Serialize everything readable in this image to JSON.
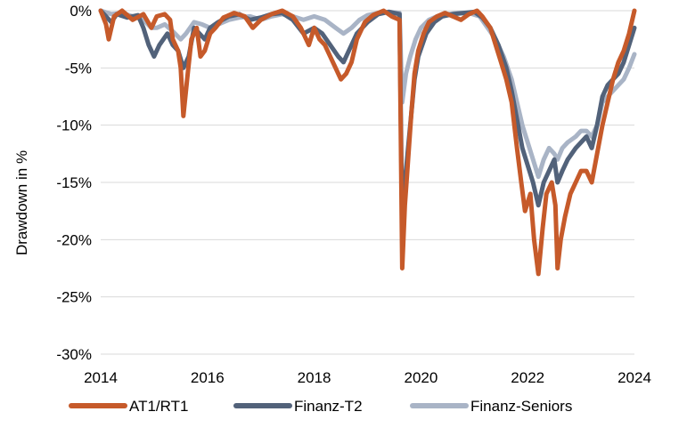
{
  "chart_data": {
    "type": "line",
    "title": "",
    "xlabel": "",
    "ylabel": "Drawdown in %",
    "xlim": [
      2014,
      2024
    ],
    "ylim": [
      -30,
      0
    ],
    "x_ticks": [
      2014,
      2016,
      2018,
      2020,
      2022,
      2024
    ],
    "x_tick_labels": [
      "2014",
      "2016",
      "2018",
      "2020",
      "2022",
      "2024"
    ],
    "y_ticks": [
      0,
      -5,
      -10,
      -15,
      -20,
      -25,
      -30
    ],
    "y_tick_labels": [
      "0%",
      "-5%",
      "-10%",
      "-15%",
      "-20%",
      "-25%",
      "-30%"
    ],
    "grid": "horizontal",
    "legend_position": "bottom",
    "series": [
      {
        "name": "AT1/RT1",
        "color": "#C65A2A",
        "points": [
          [
            2014.0,
            0
          ],
          [
            2014.1,
            -1.2
          ],
          [
            2014.15,
            -2.5
          ],
          [
            2014.25,
            -0.5
          ],
          [
            2014.4,
            0
          ],
          [
            2014.6,
            -0.8
          ],
          [
            2014.8,
            -0.3
          ],
          [
            2014.95,
            -1.5
          ],
          [
            2015.05,
            -0.5
          ],
          [
            2015.2,
            -0.3
          ],
          [
            2015.3,
            -0.8
          ],
          [
            2015.35,
            -2.5
          ],
          [
            2015.45,
            -3.5
          ],
          [
            2015.5,
            -5
          ],
          [
            2015.55,
            -9.2
          ],
          [
            2015.62,
            -6
          ],
          [
            2015.7,
            -2.5
          ],
          [
            2015.8,
            -1.5
          ],
          [
            2015.87,
            -4
          ],
          [
            2015.95,
            -3.5
          ],
          [
            2016.05,
            -2
          ],
          [
            2016.15,
            -1.5
          ],
          [
            2016.3,
            -0.6
          ],
          [
            2016.5,
            -0.2
          ],
          [
            2016.7,
            -0.5
          ],
          [
            2016.85,
            -1.5
          ],
          [
            2017.0,
            -0.8
          ],
          [
            2017.2,
            -0.3
          ],
          [
            2017.4,
            0
          ],
          [
            2017.6,
            -0.5
          ],
          [
            2017.75,
            -1.5
          ],
          [
            2017.9,
            -3
          ],
          [
            2018.0,
            -1.5
          ],
          [
            2018.1,
            -2.5
          ],
          [
            2018.2,
            -3
          ],
          [
            2018.3,
            -4
          ],
          [
            2018.4,
            -5
          ],
          [
            2018.5,
            -6
          ],
          [
            2018.6,
            -5.5
          ],
          [
            2018.7,
            -4.5
          ],
          [
            2018.8,
            -2.5
          ],
          [
            2018.95,
            -1
          ],
          [
            2019.1,
            -0.4
          ],
          [
            2019.3,
            0
          ],
          [
            2019.45,
            -0.5
          ],
          [
            2019.6,
            -0.8
          ],
          [
            2019.65,
            -22.5
          ],
          [
            2019.7,
            -17
          ],
          [
            2019.76,
            -13
          ],
          [
            2019.82,
            -9
          ],
          [
            2019.88,
            -5.5
          ],
          [
            2019.95,
            -3.5
          ],
          [
            2020.05,
            -2
          ],
          [
            2020.15,
            -1
          ],
          [
            2020.3,
            -0.5
          ],
          [
            2020.45,
            -0.2
          ],
          [
            2020.6,
            -0.5
          ],
          [
            2020.75,
            -0.8
          ],
          [
            2020.9,
            -0.3
          ],
          [
            2021.05,
            0
          ],
          [
            2021.15,
            -0.5
          ],
          [
            2021.3,
            -1.5
          ],
          [
            2021.4,
            -3
          ],
          [
            2021.5,
            -4.5
          ],
          [
            2021.6,
            -6
          ],
          [
            2021.7,
            -8
          ],
          [
            2021.8,
            -12
          ],
          [
            2021.88,
            -15
          ],
          [
            2021.95,
            -17.5
          ],
          [
            2022.05,
            -16
          ],
          [
            2022.12,
            -20
          ],
          [
            2022.2,
            -23
          ],
          [
            2022.28,
            -19
          ],
          [
            2022.35,
            -16
          ],
          [
            2022.45,
            -15
          ],
          [
            2022.52,
            -17
          ],
          [
            2022.56,
            -22.5
          ],
          [
            2022.62,
            -20
          ],
          [
            2022.7,
            -18
          ],
          [
            2022.8,
            -16
          ],
          [
            2022.9,
            -15
          ],
          [
            2023.0,
            -14
          ],
          [
            2023.1,
            -14
          ],
          [
            2023.2,
            -15
          ],
          [
            2023.3,
            -12.5
          ],
          [
            2023.4,
            -10
          ],
          [
            2023.5,
            -8
          ],
          [
            2023.6,
            -6
          ],
          [
            2023.7,
            -4.5
          ],
          [
            2023.8,
            -3.5
          ],
          [
            2023.9,
            -2
          ],
          [
            2024.0,
            0
          ]
        ]
      },
      {
        "name": "Finanz-T2",
        "color": "#52627A",
        "points": [
          [
            2014.0,
            0
          ],
          [
            2014.1,
            -0.5
          ],
          [
            2014.2,
            -1
          ],
          [
            2014.3,
            -0.3
          ],
          [
            2014.5,
            -0.6
          ],
          [
            2014.7,
            -0.4
          ],
          [
            2014.8,
            -1.5
          ],
          [
            2014.9,
            -3
          ],
          [
            2015.0,
            -4
          ],
          [
            2015.1,
            -3
          ],
          [
            2015.25,
            -2
          ],
          [
            2015.35,
            -3
          ],
          [
            2015.45,
            -3.5
          ],
          [
            2015.55,
            -5
          ],
          [
            2015.65,
            -4
          ],
          [
            2015.75,
            -1.5
          ],
          [
            2015.85,
            -2
          ],
          [
            2015.95,
            -2.5
          ],
          [
            2016.05,
            -1.5
          ],
          [
            2016.2,
            -1
          ],
          [
            2016.4,
            -0.5
          ],
          [
            2016.6,
            -0.3
          ],
          [
            2016.8,
            -0.8
          ],
          [
            2017.0,
            -0.6
          ],
          [
            2017.2,
            -0.3
          ],
          [
            2017.4,
            -0.2
          ],
          [
            2017.6,
            -0.8
          ],
          [
            2017.8,
            -2
          ],
          [
            2018.0,
            -1.5
          ],
          [
            2018.15,
            -2
          ],
          [
            2018.3,
            -3
          ],
          [
            2018.45,
            -4
          ],
          [
            2018.55,
            -4.5
          ],
          [
            2018.65,
            -3.5
          ],
          [
            2018.8,
            -2
          ],
          [
            2019.0,
            -1
          ],
          [
            2019.2,
            -0.3
          ],
          [
            2019.4,
            -0.1
          ],
          [
            2019.6,
            -0.3
          ],
          [
            2019.65,
            -19
          ],
          [
            2019.72,
            -14
          ],
          [
            2019.8,
            -10
          ],
          [
            2019.88,
            -6
          ],
          [
            2019.95,
            -4
          ],
          [
            2020.1,
            -2
          ],
          [
            2020.25,
            -1
          ],
          [
            2020.4,
            -0.5
          ],
          [
            2020.6,
            -0.3
          ],
          [
            2020.8,
            -0.2
          ],
          [
            2021.0,
            -0.1
          ],
          [
            2021.15,
            -0.6
          ],
          [
            2021.3,
            -1.5
          ],
          [
            2021.45,
            -3
          ],
          [
            2021.6,
            -5
          ],
          [
            2021.7,
            -7
          ],
          [
            2021.8,
            -9.5
          ],
          [
            2021.9,
            -12
          ],
          [
            2022.0,
            -13.5
          ],
          [
            2022.1,
            -15
          ],
          [
            2022.2,
            -17
          ],
          [
            2022.3,
            -15
          ],
          [
            2022.4,
            -14
          ],
          [
            2022.5,
            -13
          ],
          [
            2022.56,
            -15
          ],
          [
            2022.65,
            -14
          ],
          [
            2022.75,
            -13
          ],
          [
            2022.9,
            -12
          ],
          [
            2023.0,
            -11.5
          ],
          [
            2023.1,
            -11
          ],
          [
            2023.2,
            -12
          ],
          [
            2023.3,
            -10
          ],
          [
            2023.4,
            -7.5
          ],
          [
            2023.5,
            -6.5
          ],
          [
            2023.6,
            -6
          ],
          [
            2023.7,
            -5.5
          ],
          [
            2023.8,
            -4.5
          ],
          [
            2023.9,
            -3
          ],
          [
            2024.0,
            -1.5
          ]
        ]
      },
      {
        "name": "Finanz-Seniors",
        "color": "#A9B4C6",
        "points": [
          [
            2014.0,
            0
          ],
          [
            2014.2,
            -0.3
          ],
          [
            2014.4,
            -0.2
          ],
          [
            2014.6,
            -0.5
          ],
          [
            2014.8,
            -0.8
          ],
          [
            2014.95,
            -1.5
          ],
          [
            2015.05,
            -1.5
          ],
          [
            2015.2,
            -1.2
          ],
          [
            2015.35,
            -1.8
          ],
          [
            2015.5,
            -2.5
          ],
          [
            2015.6,
            -2
          ],
          [
            2015.75,
            -1
          ],
          [
            2015.9,
            -1.2
          ],
          [
            2016.05,
            -1.5
          ],
          [
            2016.2,
            -1.2
          ],
          [
            2016.4,
            -0.8
          ],
          [
            2016.6,
            -0.6
          ],
          [
            2016.8,
            -0.5
          ],
          [
            2017.0,
            -0.8
          ],
          [
            2017.2,
            -0.5
          ],
          [
            2017.4,
            -0.3
          ],
          [
            2017.6,
            -0.5
          ],
          [
            2017.8,
            -0.8
          ],
          [
            2018.0,
            -0.5
          ],
          [
            2018.2,
            -0.8
          ],
          [
            2018.4,
            -1.5
          ],
          [
            2018.55,
            -2
          ],
          [
            2018.7,
            -1.5
          ],
          [
            2018.85,
            -0.8
          ],
          [
            2019.0,
            -0.4
          ],
          [
            2019.2,
            -0.2
          ],
          [
            2019.4,
            -0.1
          ],
          [
            2019.6,
            -0.2
          ],
          [
            2019.65,
            -8
          ],
          [
            2019.72,
            -5.5
          ],
          [
            2019.8,
            -4
          ],
          [
            2019.9,
            -2.5
          ],
          [
            2020.0,
            -1.5
          ],
          [
            2020.15,
            -0.8
          ],
          [
            2020.3,
            -0.5
          ],
          [
            2020.5,
            -0.3
          ],
          [
            2020.7,
            -0.2
          ],
          [
            2020.9,
            -0.2
          ],
          [
            2021.1,
            -0.5
          ],
          [
            2021.25,
            -1.5
          ],
          [
            2021.4,
            -2.5
          ],
          [
            2021.55,
            -4
          ],
          [
            2021.7,
            -6
          ],
          [
            2021.8,
            -8
          ],
          [
            2021.9,
            -10
          ],
          [
            2022.0,
            -11.5
          ],
          [
            2022.1,
            -13
          ],
          [
            2022.2,
            -14.5
          ],
          [
            2022.3,
            -13
          ],
          [
            2022.4,
            -12
          ],
          [
            2022.5,
            -12.5
          ],
          [
            2022.56,
            -13
          ],
          [
            2022.65,
            -12
          ],
          [
            2022.75,
            -11.5
          ],
          [
            2022.9,
            -11
          ],
          [
            2023.0,
            -10.5
          ],
          [
            2023.1,
            -10.5
          ],
          [
            2023.2,
            -11
          ],
          [
            2023.3,
            -10
          ],
          [
            2023.4,
            -8
          ],
          [
            2023.5,
            -7.5
          ],
          [
            2023.6,
            -7
          ],
          [
            2023.7,
            -6.5
          ],
          [
            2023.8,
            -6
          ],
          [
            2023.9,
            -5
          ],
          [
            2024.0,
            -3.8
          ]
        ]
      }
    ]
  }
}
